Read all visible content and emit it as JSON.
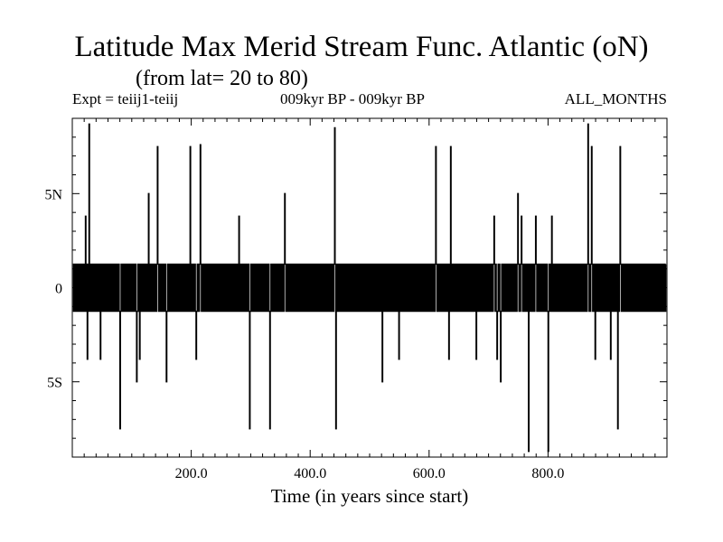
{
  "header": {
    "title": "Latitude Max Merid Stream Func. Atlantic (oN)",
    "subtitle": "(from lat= 20 to 80)",
    "left": "Expt = teiij1-teiij",
    "center": "009kyr BP - 009kyr BP",
    "right": "ALL_MONTHS"
  },
  "chart_data": {
    "type": "line",
    "title": "Latitude Max Merid Stream Func. Atlantic (oN)",
    "subtitle": "(from lat= 20 to 80)",
    "xlabel": "Time (in years since start)",
    "ylabel": "",
    "xlim": [
      0,
      1000
    ],
    "ylim": [
      -9,
      9
    ],
    "x_ticks": [
      200,
      400,
      600,
      800
    ],
    "x_tick_labels": [
      "200.0",
      "400.0",
      "600.0",
      "800.0"
    ],
    "y_ticks": [
      -5,
      0,
      5
    ],
    "y_tick_labels": [
      "5S",
      "0",
      "5N"
    ],
    "baseline_pattern": [
      1.25,
      -1.25
    ],
    "series": [
      {
        "x": [
          22,
          25,
          28,
          47,
          80,
          108,
          113,
          128,
          143,
          158,
          198,
          208,
          215,
          280,
          298,
          332,
          357,
          441,
          443,
          521,
          549,
          611,
          633,
          636,
          679,
          709,
          714,
          720,
          749,
          755,
          767,
          779,
          800,
          806,
          867,
          873,
          879,
          905,
          917,
          921
        ],
        "values": [
          3.8,
          -3.8,
          8.7,
          -3.8,
          -7.5,
          -5.0,
          -3.8,
          5.0,
          7.5,
          -5.0,
          7.5,
          -3.8,
          7.6,
          3.8,
          -7.5,
          -7.5,
          5.0,
          8.5,
          -7.5,
          -5.0,
          -3.8,
          7.5,
          -3.8,
          7.5,
          -3.8,
          3.8,
          -3.8,
          -5.0,
          5.0,
          3.8,
          -8.7,
          3.8,
          -8.7,
          3.8,
          8.7,
          7.5,
          -3.8,
          -3.8,
          -7.5,
          7.5
        ]
      }
    ]
  }
}
